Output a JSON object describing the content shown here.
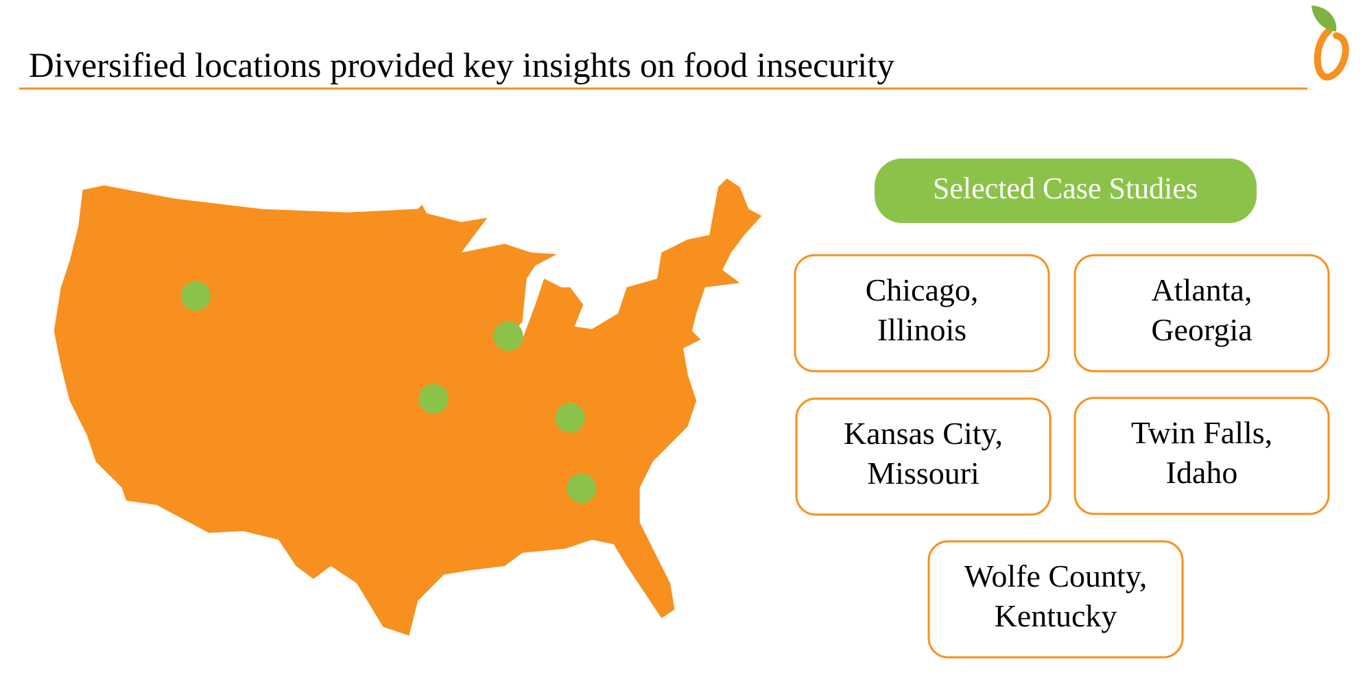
{
  "header": {
    "title": "Diversified locations provided key insights on food insecurity"
  },
  "panel": {
    "heading": "Selected Case Studies",
    "locations": [
      {
        "lines": [
          "Chicago,",
          "Illinois"
        ]
      },
      {
        "lines": [
          "Atlanta,",
          "Georgia"
        ]
      },
      {
        "lines": [
          "Kansas City,",
          "Missouri"
        ]
      },
      {
        "lines": [
          "Twin Falls,",
          "Idaho"
        ]
      },
      {
        "lines": [
          "Wolfe County,",
          "Kentucky"
        ]
      }
    ]
  }
}
